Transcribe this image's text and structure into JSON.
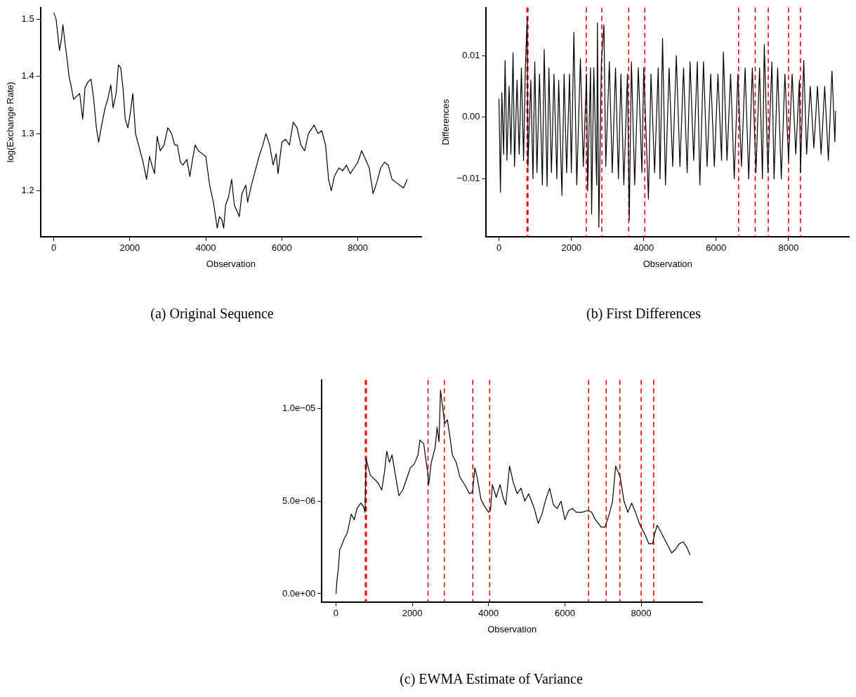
{
  "chart_data": [
    {
      "type": "line",
      "title": "(a) Original Sequence",
      "xlabel": "Observation",
      "ylabel": "log(Exchange Rate)",
      "xlim": [
        -350,
        9670
      ],
      "ylim": [
        1.12,
        1.52
      ],
      "xticks": [
        0,
        2000,
        4000,
        6000,
        8000
      ],
      "yticks": [
        1.2,
        1.3,
        1.4,
        1.5
      ],
      "grid": false,
      "legend": false,
      "x": [
        0,
        60,
        150,
        200,
        240,
        300,
        350,
        400,
        450,
        520,
        600,
        680,
        760,
        820,
        900,
        980,
        1050,
        1120,
        1180,
        1260,
        1350,
        1420,
        1500,
        1560,
        1640,
        1700,
        1760,
        1820,
        1880,
        1950,
        2000,
        2080,
        2150,
        2250,
        2350,
        2440,
        2520,
        2580,
        2650,
        2720,
        2800,
        2900,
        3000,
        3100,
        3180,
        3250,
        3330,
        3400,
        3500,
        3580,
        3650,
        3720,
        3800,
        3900,
        4000,
        4100,
        4200,
        4300,
        4360,
        4420,
        4470,
        4520,
        4600,
        4680,
        4750,
        4820,
        4880,
        4950,
        5050,
        5100,
        5200,
        5300,
        5400,
        5500,
        5580,
        5680,
        5770,
        5850,
        5900,
        6000,
        6100,
        6200,
        6300,
        6400,
        6500,
        6600,
        6700,
        6850,
        6950,
        7050,
        7150,
        7230,
        7300,
        7380,
        7500,
        7600,
        7700,
        7800,
        7900,
        8000,
        8100,
        8200,
        8300,
        8400,
        8500,
        8600,
        8700,
        8800,
        8900,
        9000,
        9100,
        9200,
        9300
      ],
      "series": [
        {
          "color": "#000000",
          "values": [
            1.511,
            1.5,
            1.445,
            1.465,
            1.49,
            1.455,
            1.43,
            1.4,
            1.385,
            1.36,
            1.365,
            1.37,
            1.325,
            1.38,
            1.39,
            1.395,
            1.36,
            1.31,
            1.285,
            1.315,
            1.345,
            1.36,
            1.385,
            1.345,
            1.37,
            1.42,
            1.415,
            1.38,
            1.325,
            1.31,
            1.33,
            1.37,
            1.3,
            1.275,
            1.25,
            1.22,
            1.26,
            1.245,
            1.23,
            1.295,
            1.27,
            1.28,
            1.31,
            1.3,
            1.28,
            1.28,
            1.25,
            1.245,
            1.255,
            1.225,
            1.255,
            1.28,
            1.27,
            1.265,
            1.26,
            1.21,
            1.18,
            1.135,
            1.155,
            1.15,
            1.135,
            1.175,
            1.19,
            1.22,
            1.175,
            1.165,
            1.155,
            1.195,
            1.21,
            1.18,
            1.21,
            1.235,
            1.26,
            1.28,
            1.3,
            1.28,
            1.245,
            1.265,
            1.23,
            1.285,
            1.29,
            1.28,
            1.32,
            1.31,
            1.28,
            1.27,
            1.3,
            1.315,
            1.3,
            1.305,
            1.28,
            1.22,
            1.2,
            1.225,
            1.24,
            1.235,
            1.245,
            1.23,
            1.24,
            1.25,
            1.27,
            1.255,
            1.24,
            1.195,
            1.215,
            1.24,
            1.25,
            1.245,
            1.22,
            1.215,
            1.21,
            1.205,
            1.22
          ]
        }
      ]
    },
    {
      "type": "line",
      "title": "(b) First Differences",
      "xlabel": "Observation",
      "ylabel": "Differences",
      "xlim": [
        -350,
        9670
      ],
      "ylim": [
        -0.0194,
        0.0178
      ],
      "xticks": [
        0,
        2000,
        4000,
        6000,
        8000
      ],
      "yticks": [
        {
          "value": -0.01,
          "label": "−0.01"
        },
        {
          "value": 0,
          "label": "0.00"
        },
        {
          "value": 0.01,
          "label": "0.01"
        }
      ],
      "grid": false,
      "legend": false,
      "x": [
        0,
        20,
        40,
        80,
        130,
        170,
        220,
        280,
        330,
        390,
        430,
        500,
        560,
        620,
        680,
        730,
        780,
        800,
        880,
        940,
        990,
        1050,
        1120,
        1200,
        1250,
        1330,
        1380,
        1450,
        1520,
        1600,
        1650,
        1740,
        1800,
        1870,
        1950,
        2000,
        2070,
        2150,
        2250,
        2330,
        2420,
        2450,
        2530,
        2560,
        2620,
        2700,
        2720,
        2760,
        2830,
        2900,
        2950,
        3050,
        3130,
        3220,
        3300,
        3370,
        3450,
        3550,
        3600,
        3660,
        3750,
        3850,
        3950,
        4000,
        4130,
        4200,
        4300,
        4400,
        4450,
        4520,
        4600,
        4700,
        4800,
        4900,
        5000,
        5100,
        5200,
        5280,
        5380,
        5480,
        5550,
        5650,
        5750,
        5850,
        5950,
        6050,
        6150,
        6200,
        6300,
        6400,
        6500,
        6600,
        6700,
        6800,
        6900,
        7000,
        7100,
        7200,
        7280,
        7330,
        7430,
        7540,
        7600,
        7700,
        7800,
        7900,
        8000,
        8100,
        8200,
        8300,
        8330,
        8420,
        8500,
        8600,
        8700,
        8800,
        8900,
        9000,
        9100,
        9200,
        9280,
        9300
      ],
      "series": [
        {
          "color": "#000000",
          "values": [
            0.003,
            -0.004,
            -0.0122,
            0.004,
            -0.006,
            0.0092,
            -0.007,
            0.005,
            -0.006,
            0.0105,
            -0.008,
            0.006,
            -0.006,
            0.008,
            -0.007,
            0.008,
            0.0162,
            -0.008,
            0.006,
            -0.01,
            0.009,
            -0.009,
            0.007,
            -0.011,
            0.011,
            -0.0112,
            0.008,
            -0.009,
            0.007,
            -0.01,
            0.006,
            -0.0127,
            0.007,
            -0.009,
            0.007,
            -0.009,
            0.0138,
            -0.011,
            0.0095,
            -0.008,
            0.007,
            -0.012,
            0.008,
            -0.0157,
            0.008,
            -0.011,
            0.0153,
            -0.0179,
            0.009,
            0.015,
            -0.008,
            0.009,
            -0.009,
            0.008,
            -0.01,
            0.007,
            -0.011,
            0.007,
            -0.0167,
            0.009,
            -0.011,
            0.008,
            -0.009,
            0.008,
            -0.0133,
            0.007,
            -0.009,
            0.008,
            -0.01,
            0.0128,
            -0.011,
            0.008,
            -0.008,
            0.01,
            -0.008,
            0.008,
            -0.009,
            0.009,
            -0.007,
            0.009,
            -0.011,
            0.009,
            -0.008,
            0.007,
            -0.008,
            0.007,
            -0.007,
            0.0106,
            -0.007,
            0.007,
            -0.01,
            0.007,
            -0.008,
            0.008,
            -0.01,
            0.008,
            -0.009,
            0.008,
            -0.01,
            0.0118,
            -0.009,
            0.009,
            -0.01,
            0.008,
            -0.01,
            0.007,
            -0.007,
            0.007,
            -0.006,
            0.006,
            -0.009,
            0.0092,
            -0.006,
            0.005,
            -0.005,
            0.005,
            -0.006,
            0.005,
            -0.007,
            0.0075,
            -0.004,
            0.001
          ]
        }
      ],
      "ref_lines": [
        {
          "axis": "x",
          "value": 774,
          "color": "#ff0000",
          "line_style": "dashed"
        },
        {
          "axis": "x",
          "value": 802,
          "color": "#ff0000",
          "line_style": "dashed"
        },
        {
          "axis": "x",
          "value": 2413,
          "color": "#ff0000",
          "line_style": "dashed"
        },
        {
          "axis": "x",
          "value": 2842,
          "color": "#ff0000",
          "line_style": "dashed"
        },
        {
          "axis": "x",
          "value": 3585,
          "color": "#ff0000",
          "line_style": "dashed"
        },
        {
          "axis": "x",
          "value": 4030,
          "color": "#ff0000",
          "line_style": "dashed"
        },
        {
          "axis": "x",
          "value": 6620,
          "color": "#ff0000",
          "line_style": "dashed"
        },
        {
          "axis": "x",
          "value": 7080,
          "color": "#ff0000",
          "line_style": "dashed"
        },
        {
          "axis": "x",
          "value": 7441,
          "color": "#ff0000",
          "line_style": "dashed"
        },
        {
          "axis": "x",
          "value": 8000,
          "color": "#ff0000",
          "line_style": "dashed"
        },
        {
          "axis": "x",
          "value": 8328,
          "color": "#ff0000",
          "line_style": "dashed"
        }
      ]
    },
    {
      "type": "line",
      "title": "(c) EWMA Estimate of Variance",
      "xlabel": "Observation",
      "xlim": [
        -370,
        9600
      ],
      "ylim": [
        -4.5e-07,
        1.155e-05
      ],
      "xticks": [
        0,
        2000,
        4000,
        6000,
        8000
      ],
      "yticks": [
        {
          "value": 0,
          "label": "0.0e+00"
        },
        {
          "value": 5e-06,
          "label": "5.0e−06"
        },
        {
          "value": 1e-05,
          "label": "1.0e−05"
        }
      ],
      "grid": false,
      "legend": false,
      "x": [
        0,
        30,
        60,
        100,
        150,
        200,
        300,
        400,
        480,
        550,
        650,
        720,
        760,
        790,
        850,
        900,
        1000,
        1100,
        1200,
        1280,
        1330,
        1400,
        1470,
        1550,
        1650,
        1750,
        1850,
        1950,
        2050,
        2150,
        2200,
        2300,
        2400,
        2430,
        2500,
        2600,
        2650,
        2700,
        2740,
        2800,
        2850,
        2920,
        3000,
        3050,
        3150,
        3250,
        3400,
        3500,
        3580,
        3640,
        3700,
        3800,
        3900,
        4000,
        4050,
        4100,
        4200,
        4300,
        4380,
        4450,
        4550,
        4650,
        4750,
        4850,
        4950,
        5050,
        5200,
        5300,
        5400,
        5500,
        5600,
        5700,
        5800,
        5900,
        6000,
        6100,
        6200,
        6300,
        6450,
        6600,
        6700,
        6800,
        6950,
        7050,
        7150,
        7250,
        7330,
        7450,
        7550,
        7650,
        7750,
        7850,
        7950,
        8100,
        8200,
        8300,
        8350,
        8420,
        8500,
        8600,
        8700,
        8800,
        8900,
        9000,
        9100,
        9200,
        9280
      ],
      "series": [
        {
          "color": "#000000",
          "values": [
            0,
            8e-07,
            1.3e-06,
            2.4e-06,
            2.6e-06,
            2.9e-06,
            3.3e-06,
            4.3e-06,
            4e-06,
            4.6e-06,
            4.9e-06,
            4.7e-06,
            4.4e-06,
            7.3e-06,
            6.8e-06,
            6.4e-06,
            6.2e-06,
            6e-06,
            5.6e-06,
            6.7e-06,
            7.7e-06,
            7.1e-06,
            7.5e-06,
            6.5e-06,
            5.3e-06,
            5.6e-06,
            6.2e-06,
            6.8e-06,
            7e-06,
            7.5e-06,
            8.3e-06,
            8.1e-06,
            6.6e-06,
            5.9e-06,
            7.1e-06,
            7.9e-06,
            9e-06,
            8.2e-06,
            1.1e-05,
            1e-05,
            9.2e-06,
            9.4e-06,
            8.3e-06,
            7.5e-06,
            7.1e-06,
            6.3e-06,
            5.8e-06,
            5.4e-06,
            5.5e-06,
            6.8e-06,
            6.3e-06,
            5.1e-06,
            4.7e-06,
            4.4e-06,
            4.5e-06,
            5.9e-06,
            5.2e-06,
            5.9e-06,
            5.2e-06,
            4.8e-06,
            6.9e-06,
            6e-06,
            5.4e-06,
            5.7e-06,
            5e-06,
            5.4e-06,
            4.6e-06,
            3.8e-06,
            4.3e-06,
            5.1e-06,
            5.7e-06,
            4.8e-06,
            4.6e-06,
            5e-06,
            4e-06,
            4.5e-06,
            4.6e-06,
            4.4e-06,
            4.4e-06,
            4.5e-06,
            4.4e-06,
            4e-06,
            3.6e-06,
            3.6e-06,
            4.2e-06,
            5e-06,
            6.9e-06,
            6.3e-06,
            5e-06,
            4.4e-06,
            4.9e-06,
            4.4e-06,
            3.8e-06,
            3.2e-06,
            2.7e-06,
            2.7e-06,
            3.2e-06,
            3.7e-06,
            3.4e-06,
            3e-06,
            2.6e-06,
            2.2e-06,
            2.4e-06,
            2.7e-06,
            2.8e-06,
            2.5e-06,
            2.1e-06
          ]
        }
      ],
      "ref_lines": [
        {
          "axis": "x",
          "value": 769,
          "color": "#ff0000",
          "line_style": "dashed"
        },
        {
          "axis": "x",
          "value": 797,
          "color": "#ff0000",
          "line_style": "dashed"
        },
        {
          "axis": "x",
          "value": 2413,
          "color": "#ff0000",
          "line_style": "dashed"
        },
        {
          "axis": "x",
          "value": 2839,
          "color": "#ff0000",
          "line_style": "dashed"
        },
        {
          "axis": "x",
          "value": 3587,
          "color": "#ff0000",
          "line_style": "dashed"
        },
        {
          "axis": "x",
          "value": 4028,
          "color": "#ff0000",
          "line_style": "dashed"
        },
        {
          "axis": "x",
          "value": 6622,
          "color": "#ff0000",
          "line_style": "dashed"
        },
        {
          "axis": "x",
          "value": 7084,
          "color": "#ff0000",
          "line_style": "dashed"
        },
        {
          "axis": "x",
          "value": 7441,
          "color": "#ff0000",
          "line_style": "dashed"
        },
        {
          "axis": "x",
          "value": 8000,
          "color": "#ff0000",
          "line_style": "dashed"
        },
        {
          "axis": "x",
          "value": 8329,
          "color": "#ff0000",
          "line_style": "dashed"
        }
      ]
    }
  ]
}
